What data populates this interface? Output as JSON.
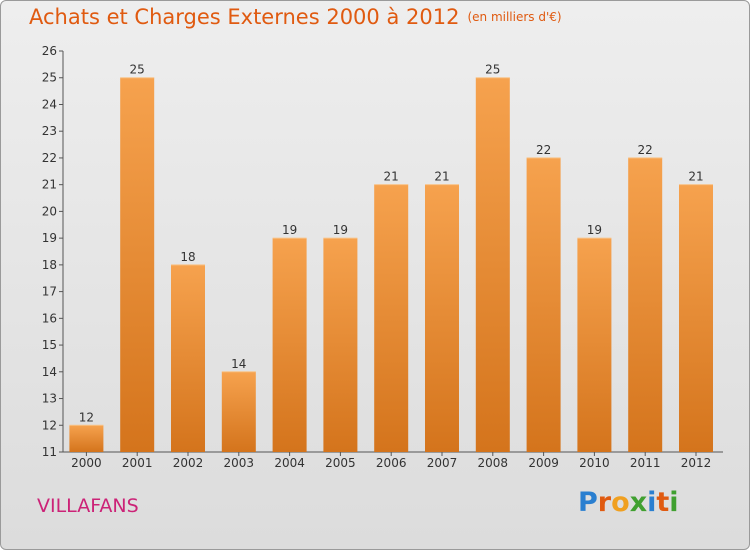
{
  "title": "Achats et Charges Externes 2000 à 2012",
  "unit": "(en milliers d'€)",
  "location": "VILLAFANS",
  "logo": {
    "letters": [
      "P",
      "r",
      "o",
      "x",
      "i",
      "t",
      "i"
    ],
    "colors": [
      "#2a7fd0",
      "#e05a10",
      "#f0a020",
      "#40a030",
      "#2a7fd0",
      "#e05a10",
      "#40a030"
    ]
  },
  "colors": {
    "bar_top": "#f6a24e",
    "bar_bottom": "#d4741c",
    "title": "#e05a10",
    "location": "#cc2277"
  },
  "chart_data": {
    "type": "bar",
    "categories": [
      "2000",
      "2001",
      "2002",
      "2003",
      "2004",
      "2005",
      "2006",
      "2007",
      "2008",
      "2009",
      "2010",
      "2011",
      "2012"
    ],
    "values": [
      12,
      25,
      18,
      14,
      19,
      19,
      21,
      21,
      25,
      22,
      19,
      22,
      21
    ],
    "ylim": [
      11,
      26
    ],
    "yticks": [
      11,
      12,
      13,
      14,
      15,
      16,
      17,
      18,
      19,
      20,
      21,
      22,
      23,
      24,
      25,
      26
    ],
    "grid": false,
    "legend": "none"
  }
}
